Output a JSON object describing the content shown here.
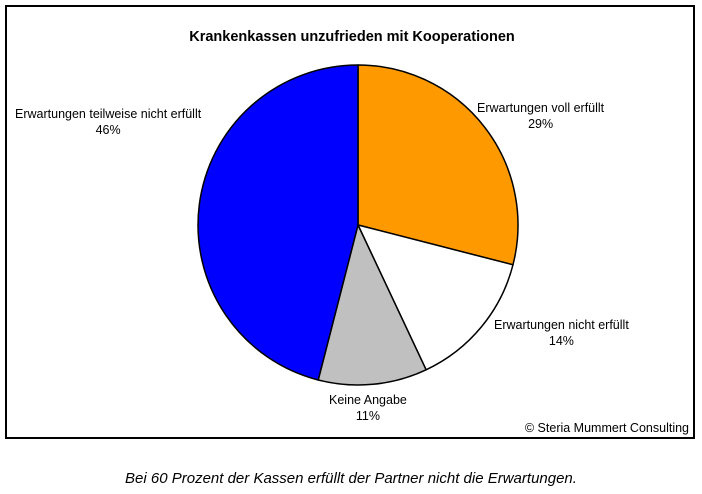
{
  "chart_data": {
    "type": "pie",
    "title": "Krankenkassen unzufrieden mit Kooperationen",
    "slices": [
      {
        "label": "Erwartungen voll erfüllt",
        "pct_label": "29%",
        "value": 29,
        "color": "#FF9900"
      },
      {
        "label": "Erwartungen nicht erfüllt",
        "pct_label": "14%",
        "value": 14,
        "color": "#FFFFFF"
      },
      {
        "label": "Keine Angabe",
        "pct_label": "11%",
        "value": 11,
        "color": "#C0C0C0"
      },
      {
        "label": "Erwartungen teilweise nicht erfüllt",
        "pct_label": "46%",
        "value": 46,
        "color": "#0000FF"
      }
    ]
  },
  "copyright": "© Steria Mummert Consulting",
  "caption": "Bei 60 Prozent der Kassen erfüllt der Partner nicht die Erwartungen."
}
